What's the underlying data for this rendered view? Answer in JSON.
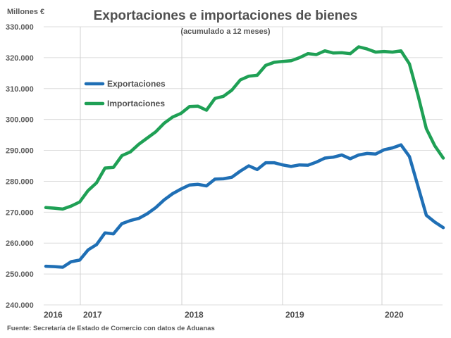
{
  "chart_data": {
    "type": "line",
    "title": "Exportaciones e importaciones de bienes",
    "subtitle": "(acumulado a 12 meses)",
    "ylabel": "Millones €",
    "xlabel": "",
    "source": "Fuente: Secretaría de Estado de Comercio con datos de Aduanas",
    "ylim": [
      240000,
      330000
    ],
    "yticks": [
      330000,
      320000,
      310000,
      300000,
      290000,
      280000,
      270000,
      260000,
      250000,
      240000
    ],
    "ytick_labels": [
      "330.000",
      "320.000",
      "310.000",
      "300.000",
      "290.000",
      "280.000",
      "270.000",
      "260.000",
      "250.000",
      "240.000"
    ],
    "xtick_labels": [
      "2016",
      "2017",
      "2018",
      "2019",
      "2020"
    ],
    "x_start": "2016-09",
    "x_frequency": "monthly",
    "grid": true,
    "legend_position": "upper-left",
    "series": [
      {
        "name": "Exportaciones",
        "color": "#1f6fb5",
        "values": [
          252500,
          252400,
          252200,
          254000,
          254500,
          257800,
          259500,
          263300,
          263000,
          266300,
          267300,
          268000,
          269500,
          271500,
          274000,
          276000,
          277500,
          278800,
          279000,
          278500,
          280700,
          280800,
          281300,
          283300,
          285000,
          283800,
          286000,
          286000,
          285300,
          284800,
          285300,
          285200,
          286200,
          287500,
          287800,
          288500,
          287300,
          288500,
          289000,
          288800,
          290200,
          290800,
          291800,
          288000,
          278500,
          269000,
          266800,
          265000
        ]
      },
      {
        "name": "Importaciones",
        "color": "#1fa055",
        "values": [
          271500,
          271300,
          271000,
          272000,
          273300,
          277000,
          279500,
          284300,
          284500,
          288300,
          289500,
          292000,
          294000,
          296000,
          298800,
          300800,
          302000,
          304200,
          304300,
          303000,
          306800,
          307500,
          309500,
          312800,
          314000,
          314300,
          317500,
          318500,
          318800,
          319000,
          320000,
          321300,
          321000,
          322200,
          321500,
          321600,
          321300,
          323500,
          322800,
          321800,
          322000,
          321800,
          322200,
          318000,
          308000,
          297000,
          291500,
          287500
        ]
      }
    ]
  }
}
